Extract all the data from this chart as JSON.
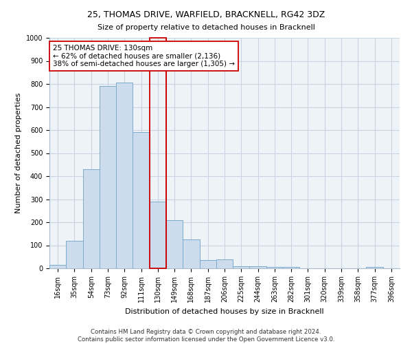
{
  "title": "25, THOMAS DRIVE, WARFIELD, BRACKNELL, RG42 3DZ",
  "subtitle": "Size of property relative to detached houses in Bracknell",
  "xlabel": "Distribution of detached houses by size in Bracknell",
  "ylabel": "Number of detached properties",
  "bar_color": "#ccdcec",
  "bar_edge_color": "#7aaacc",
  "bar_edge_width": 0.7,
  "categories": [
    "16sqm",
    "35sqm",
    "54sqm",
    "73sqm",
    "92sqm",
    "111sqm",
    "130sqm",
    "149sqm",
    "168sqm",
    "187sqm",
    "206sqm",
    "225sqm",
    "244sqm",
    "263sqm",
    "282sqm",
    "301sqm",
    "320sqm",
    "339sqm",
    "358sqm",
    "377sqm",
    "396sqm"
  ],
  "values": [
    15,
    120,
    430,
    790,
    805,
    590,
    290,
    210,
    125,
    35,
    38,
    10,
    10,
    5,
    5,
    0,
    0,
    0,
    0,
    5,
    0
  ],
  "red_line_after_bin": 6,
  "highlight_color": "#cc0000",
  "highlight_linewidth": 1.2,
  "annotation_text": "25 THOMAS DRIVE: 130sqm\n← 62% of detached houses are smaller (2,136)\n38% of semi-detached houses are larger (1,305) →",
  "annotation_box_color": "white",
  "annotation_box_edgecolor": "#cc0000",
  "annotation_fontsize": 7.5,
  "ylim": [
    0,
    1000
  ],
  "yticks": [
    0,
    100,
    200,
    300,
    400,
    500,
    600,
    700,
    800,
    900,
    1000
  ],
  "grid_color": "#c8d4e0",
  "background_color": "#eef3f8",
  "title_fontsize": 9,
  "subtitle_fontsize": 8,
  "ylabel_fontsize": 8,
  "xlabel_fontsize": 8,
  "tick_fontsize": 7,
  "footer_line1": "Contains HM Land Registry data © Crown copyright and database right 2024.",
  "footer_line2": "Contains public sector information licensed under the Open Government Licence v3.0.",
  "footer_fontsize": 6.2
}
